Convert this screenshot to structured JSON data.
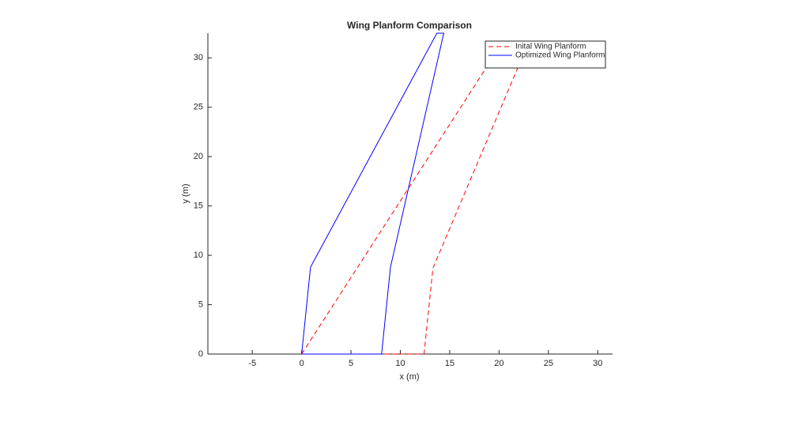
{
  "chart_data": {
    "type": "line",
    "title": "Wing Planform Comparison",
    "xlabel": "x (m)",
    "ylabel": "y (m)",
    "xlim": [
      -9.5,
      31.5
    ],
    "ylim": [
      0,
      32.5
    ],
    "xticks": [
      -5,
      0,
      5,
      10,
      15,
      20,
      25,
      30
    ],
    "yticks": [
      0,
      5,
      10,
      15,
      20,
      25,
      30
    ],
    "legend": "upper right",
    "series": [
      {
        "name": "Inital Wing Planform",
        "color": "#ff0000",
        "line_style": "dashed",
        "x": [
          0,
          18.7,
          21.9,
          13.3,
          12.4,
          0
        ],
        "values": [
          0,
          29,
          29,
          8.7,
          0,
          0
        ]
      },
      {
        "name": "Optimized Wing Planform",
        "color": "#0000ff",
        "line_style": "solid",
        "x": [
          0,
          0.9,
          13.7,
          14.4,
          9.0,
          8.1,
          0
        ],
        "values": [
          0,
          8.8,
          32.5,
          32.5,
          8.8,
          0,
          0
        ]
      }
    ]
  }
}
